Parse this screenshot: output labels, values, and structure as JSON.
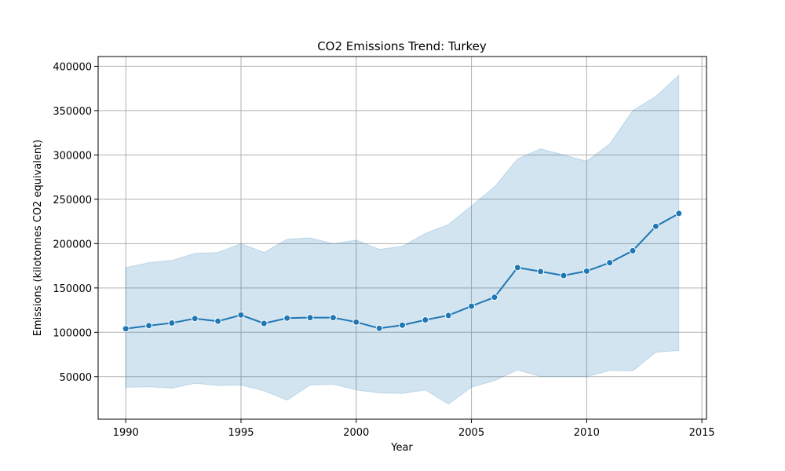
{
  "chart_data": {
    "type": "line",
    "title": "CO2 Emissions Trend: Turkey",
    "xlabel": "Year",
    "ylabel": "Emissions (kilotonnes CO2 equivalent)",
    "xlim": [
      1988.8,
      2015.2
    ],
    "ylim": [
      2000,
      411000
    ],
    "xticks": [
      1990,
      1995,
      2000,
      2005,
      2010,
      2015
    ],
    "yticks": [
      50000,
      100000,
      150000,
      200000,
      250000,
      300000,
      350000,
      400000
    ],
    "grid": true,
    "colors": {
      "line": "#1f77b4",
      "band": "#1f77b4",
      "grid": "#b0b0b0"
    },
    "x": [
      1990,
      1991,
      1992,
      1993,
      1994,
      1995,
      1996,
      1997,
      1998,
      1999,
      2000,
      2001,
      2002,
      2003,
      2004,
      2005,
      2006,
      2007,
      2008,
      2009,
      2010,
      2011,
      2012,
      2013,
      2014
    ],
    "series": [
      {
        "values": [
          104000,
          107500,
          110500,
          115500,
          112500,
          119500,
          110000,
          116000,
          116500,
          116500,
          111500,
          104500,
          108000,
          114000,
          119000,
          129500,
          139500,
          173000,
          168500,
          164000,
          169000,
          178500,
          192000,
          219500,
          234000
        ],
        "band_upper": [
          173000,
          178500,
          181000,
          189000,
          190000,
          200000,
          190000,
          205000,
          206500,
          200000,
          204000,
          193500,
          197000,
          211500,
          221500,
          242500,
          264000,
          295500,
          307000,
          300000,
          293000,
          312500,
          350000,
          366000,
          390000
        ],
        "band_lower": [
          38000,
          38500,
          37000,
          42500,
          40000,
          40500,
          34000,
          23500,
          40500,
          41500,
          35000,
          31500,
          31000,
          35000,
          19000,
          38000,
          45500,
          57500,
          50000,
          50000,
          50000,
          57000,
          56500,
          77500,
          79500
        ]
      }
    ]
  }
}
